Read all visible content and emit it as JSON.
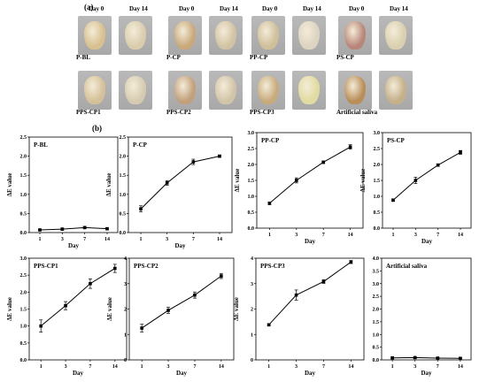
{
  "panel_a_label": "(a)",
  "panel_b_label": "(b)",
  "photos": {
    "day0_label": "Day 0",
    "day14_label": "Day 14",
    "groups": [
      {
        "name": "P-BL",
        "colors": [
          "#d8c090",
          "#d9cdae"
        ]
      },
      {
        "name": "P-CP",
        "colors": [
          "#c9a97c",
          "#d2c3a4"
        ]
      },
      {
        "name": "PP-CP",
        "colors": [
          "#cfbf9a",
          "#dcd3c1"
        ]
      },
      {
        "name": "PS-CP",
        "colors": [
          "#b9877a",
          "#d9d0b0"
        ]
      },
      {
        "name": "PPS-CP1",
        "colors": [
          "#d5c199",
          "#d6cbb2"
        ]
      },
      {
        "name": "PPS-CP2",
        "colors": [
          "#c3a07c",
          "#d1c4a8"
        ]
      },
      {
        "name": "PPS-CP3",
        "colors": [
          "#c7ab7d",
          "#e0dba0"
        ]
      },
      {
        "name": "Artificial saliva",
        "colors": [
          "#b98e5a",
          "#c4b08a"
        ]
      }
    ]
  },
  "chart_data": [
    {
      "type": "line",
      "title": "P-BL",
      "categories": [
        "1",
        "3",
        "7",
        "14"
      ],
      "values": [
        0.07,
        0.09,
        0.13,
        0.1
      ],
      "errors": [
        0.02,
        0.03,
        0.03,
        0.03
      ],
      "xlabel": "Day",
      "ylabel": "ΔE value",
      "ylim": [
        0,
        2.5
      ],
      "yticks": [
        "0.0",
        "0.5",
        "1.0",
        "1.5",
        "2.0",
        "2.5"
      ],
      "ytick_values": [
        0,
        0.5,
        1,
        1.5,
        2,
        2.5
      ]
    },
    {
      "type": "line",
      "title": "P-CP",
      "categories": [
        "1",
        "3",
        "7",
        "14"
      ],
      "values": [
        0.62,
        1.3,
        1.85,
        2.0
      ],
      "errors": [
        0.08,
        0.06,
        0.07,
        0.03
      ],
      "xlabel": "Day",
      "ylabel": "ΔE value",
      "ylim": [
        0,
        2.5
      ],
      "yticks": [
        "0.0",
        "0.5",
        "1.0",
        "1.5",
        "2.0",
        "2.5"
      ],
      "ytick_values": [
        0,
        0.5,
        1,
        1.5,
        2,
        2.5
      ]
    },
    {
      "type": "line",
      "title": "PP-CP",
      "categories": [
        "1",
        "3",
        "7",
        "14"
      ],
      "values": [
        0.78,
        1.5,
        2.07,
        2.55
      ],
      "errors": [
        0.04,
        0.08,
        0.04,
        0.07
      ],
      "xlabel": "Day",
      "ylabel": "ΔE value",
      "ylim": [
        0,
        3.0
      ],
      "yticks": [
        "0.0",
        "0.5",
        "1.0",
        "1.5",
        "2.0",
        "2.5",
        "3.0"
      ],
      "ytick_values": [
        0,
        0.5,
        1,
        1.5,
        2,
        2.5,
        3
      ]
    },
    {
      "type": "line",
      "title": "PS-CP",
      "categories": [
        "1",
        "3",
        "7",
        "14"
      ],
      "values": [
        0.88,
        1.5,
        1.98,
        2.38
      ],
      "errors": [
        0.04,
        0.1,
        0.04,
        0.06
      ],
      "xlabel": "Day",
      "ylabel": "ΔE value",
      "ylim": [
        0,
        3.0
      ],
      "yticks": [
        "0.0",
        "0.5",
        "1.0",
        "1.5",
        "2.0",
        "2.5",
        "3.0"
      ],
      "ytick_values": [
        0,
        0.5,
        1,
        1.5,
        2,
        2.5,
        3
      ]
    },
    {
      "type": "line",
      "title": "PPS-CP1",
      "categories": [
        "1",
        "3",
        "7",
        "14"
      ],
      "values": [
        1.0,
        1.6,
        2.25,
        2.7
      ],
      "errors": [
        0.18,
        0.12,
        0.14,
        0.12
      ],
      "xlabel": "Day",
      "ylabel": "ΔE value",
      "ylim": [
        0,
        3.0
      ],
      "yticks": [
        "0.0",
        "0.5",
        "1.0",
        "1.5",
        "2.0",
        "2.5",
        "3.0"
      ],
      "ytick_values": [
        0,
        0.5,
        1,
        1.5,
        2,
        2.5,
        3
      ]
    },
    {
      "type": "line",
      "title": "PPS-CP2",
      "categories": [
        "1",
        "3",
        "7",
        "14"
      ],
      "values": [
        1.25,
        1.95,
        2.55,
        3.3
      ],
      "errors": [
        0.15,
        0.12,
        0.12,
        0.1
      ],
      "xlabel": "Day",
      "ylabel": "ΔE value",
      "ylim": [
        0,
        4.0
      ],
      "yticks": [
        "0",
        "1",
        "2",
        "3",
        "4"
      ],
      "ytick_values": [
        0,
        1,
        2,
        3,
        4
      ]
    },
    {
      "type": "line",
      "title": "PPS-CP3",
      "categories": [
        "1",
        "3",
        "7",
        "14"
      ],
      "values": [
        1.38,
        2.55,
        3.08,
        3.85
      ],
      "errors": [
        0.04,
        0.2,
        0.07,
        0.06
      ],
      "xlabel": "Day",
      "ylabel": "ΔE value",
      "ylim": [
        0,
        4.0
      ],
      "yticks": [
        "0",
        "1",
        "2",
        "3",
        "4"
      ],
      "ytick_values": [
        0,
        1,
        2,
        3,
        4
      ]
    },
    {
      "type": "line",
      "title": "Artificial saliva",
      "categories": [
        "1",
        "3",
        "7",
        "14"
      ],
      "values": [
        0.08,
        0.09,
        0.07,
        0.06
      ],
      "errors": [
        0.03,
        0.03,
        0.02,
        0.02
      ],
      "xlabel": "Day",
      "ylabel": "",
      "ylim": [
        0,
        4.0
      ],
      "yticks": [
        "0.0",
        "0.5",
        "1.0",
        "1.5",
        "2.0",
        "2.5",
        "3.0",
        "3.5",
        "4.0"
      ],
      "ytick_values": [
        0,
        0.5,
        1,
        1.5,
        2,
        2.5,
        3,
        3.5,
        4
      ]
    }
  ]
}
